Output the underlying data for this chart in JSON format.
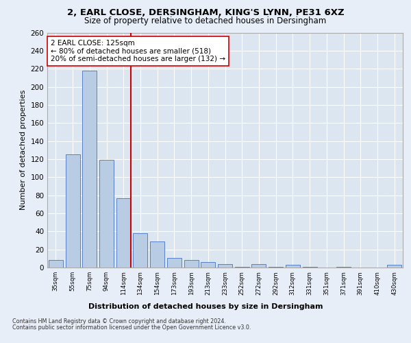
{
  "title1": "2, EARL CLOSE, DERSINGHAM, KING'S LYNN, PE31 6XZ",
  "title2": "Size of property relative to detached houses in Dersingham",
  "xlabel": "Distribution of detached houses by size in Dersingham",
  "ylabel": "Number of detached properties",
  "categories": [
    "35sqm",
    "55sqm",
    "75sqm",
    "94sqm",
    "114sqm",
    "134sqm",
    "154sqm",
    "173sqm",
    "193sqm",
    "213sqm",
    "233sqm",
    "252sqm",
    "272sqm",
    "292sqm",
    "312sqm",
    "331sqm",
    "351sqm",
    "371sqm",
    "391sqm",
    "410sqm",
    "430sqm"
  ],
  "values": [
    8,
    125,
    218,
    119,
    77,
    38,
    29,
    11,
    8,
    6,
    4,
    1,
    4,
    1,
    3,
    1,
    0,
    1,
    0,
    0,
    3
  ],
  "bar_color": "#b8cce4",
  "bar_edge_color": "#4472c4",
  "vline_color": "#cc0000",
  "annotation_text": "2 EARL CLOSE: 125sqm\n← 80% of detached houses are smaller (518)\n20% of semi-detached houses are larger (132) →",
  "annotation_box_color": "#ffffff",
  "annotation_box_edge": "#cc0000",
  "bg_color": "#e8eef7",
  "plot_bg_color": "#dce6f1",
  "footer1": "Contains HM Land Registry data © Crown copyright and database right 2024.",
  "footer2": "Contains public sector information licensed under the Open Government Licence v3.0.",
  "ylim": [
    0,
    260
  ],
  "yticks": [
    0,
    20,
    40,
    60,
    80,
    100,
    120,
    140,
    160,
    180,
    200,
    220,
    240,
    260
  ]
}
